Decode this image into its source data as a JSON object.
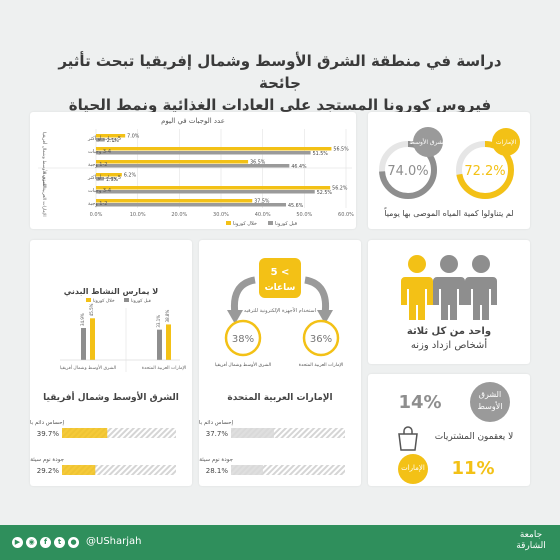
{
  "title": {
    "line1": "دراسة في منطقة الشرق الأوسط وشمال إفريقيا تبحث تأثير جائحة",
    "line2": "فيروس كورونا المستجد على العادات الغذائية ونمط الحياة"
  },
  "meals": {
    "title": "عدد الوجبات في اليوم",
    "group1": "الشرق الأوسط وشمال أفريقيا",
    "group2": "الإمارات العربية المتحدة",
    "legend": [
      "قبل كورونا",
      "خلال كورونا"
    ],
    "colors": {
      "during": "#f3c116",
      "before": "#9a9a9a"
    },
    "categories": [
      "5 وجبات أو أكثر",
      "3-4 وجبات",
      "1-2 وجبة",
      "5 وجبات أو أكثر",
      "3-4 وجبات",
      "1-2 وجبة"
    ],
    "during_labels": [
      "7.0%",
      "56.5%",
      "36.5%",
      "6.2%",
      "56.2%",
      "37.5%"
    ],
    "before_labels": [
      "2.1%",
      "51.5%",
      "46.4%",
      "1.9%",
      "52.5%",
      "45.6%"
    ],
    "xticks": [
      "0.0%",
      "10.0%",
      "20.0%",
      "30.0%",
      "40.0%",
      "50.0%",
      "60.0%"
    ]
  },
  "water": {
    "mena_label": "الشرق الأوسط",
    "mena_value": "74.0%",
    "uae_label": "الإمارات",
    "uae_value": "72.2%",
    "caption": "لم يتناولوا كمية المياه الموصى بها يومياً"
  },
  "physical": {
    "title": "لا يمارس النشاط البدني",
    "legend": [
      "قبل كورونا",
      "خلال كورونا"
    ],
    "groups": [
      "الشرق الأوسط وشمال أفريقيا",
      "الإمارات العربية المتحدة"
    ],
    "before_labels": [
      "34.9%",
      "33.1%"
    ],
    "during_labels": [
      "45.5%",
      "38.8%"
    ],
    "section1": "الشرق الأوسط وشمال أفريقيا",
    "stress_label": "إحساس دائم بالتوتر",
    "sleep_label": "جودة نوم سيئة",
    "mena_stress": "39.7%",
    "mena_sleep": "29.2%"
  },
  "screen": {
    "badge_line1": "5 <",
    "badge_line2": "ساعات",
    "caption": "استخدام الأجهزة الإلكترونية للترفيه",
    "mena_value": "38%",
    "mena_label": "الشرق الأوسط وشمال أفريقيا",
    "uae_value": "36%",
    "uae_label": "الإمارات العربية المتحدة",
    "section2": "الإمارات العربية المتحدة",
    "stress_label": "إحساس دائم بالتوتر",
    "sleep_label": "جودة نوم سيئة",
    "uae_stress": "37.7%",
    "uae_sleep": "28.1%"
  },
  "weight": {
    "line1": "واحد من كل ثلاثة",
    "line2": "أشخاص ازداد وزنه"
  },
  "shopping": {
    "mena_label": "الشرق الأوسط",
    "mena_value": "14%",
    "caption": "لا يعقمون المشتريات",
    "uae_label": "الإمارات",
    "uae_value": "11%"
  },
  "footer": {
    "handle": "@USharjah",
    "brand": "جامعة الشارقة"
  },
  "chart_data": [
    {
      "type": "bar",
      "title": "عدد الوجبات في اليوم",
      "categories": [
        "الشرق الأوسط وشمال أفريقيا - 5 وجبات أو أكثر",
        "الشرق الأوسط وشمال أفريقيا - 3-4 وجبات",
        "الشرق الأوسط وشمال أفريقيا - 1-2 وجبة",
        "الإمارات العربية المتحدة - 5 وجبات أو أكثر",
        "الإمارات العربية المتحدة - 3-4 وجبات",
        "الإمارات العربية المتحدة - 1-2 وجبة"
      ],
      "series": [
        {
          "name": "خلال كورونا",
          "values": [
            7.0,
            56.5,
            36.5,
            6.2,
            56.2,
            37.5
          ]
        },
        {
          "name": "قبل كورونا",
          "values": [
            2.1,
            51.5,
            46.4,
            1.9,
            52.5,
            45.6
          ]
        }
      ],
      "xlim": [
        0,
        60
      ],
      "legend": "bottom"
    },
    {
      "type": "bar",
      "title": "لا يمارس النشاط البدني",
      "categories": [
        "الشرق الأوسط وشمال أفريقيا",
        "الإمارات العربية المتحدة"
      ],
      "series": [
        {
          "name": "قبل كورونا",
          "values": [
            34.9,
            33.1
          ]
        },
        {
          "name": "خلال كورونا",
          "values": [
            45.5,
            38.8
          ]
        }
      ],
      "ylim": [
        0,
        60
      ],
      "legend": "top"
    },
    {
      "type": "bar",
      "categories": [
        "إحساس دائم بالتوتر",
        "جودة نوم سيئة"
      ],
      "series": [
        {
          "name": "الشرق الأوسط وشمال أفريقيا",
          "values": [
            39.7,
            29.2
          ]
        },
        {
          "name": "الإمارات العربية المتحدة",
          "values": [
            37.7,
            28.1
          ]
        }
      ],
      "xlim": [
        0,
        100
      ]
    },
    {
      "type": "pie",
      "categories": [
        "الشرق الأوسط",
        "الإمارات"
      ],
      "values": [
        74.0,
        72.2
      ]
    }
  ]
}
